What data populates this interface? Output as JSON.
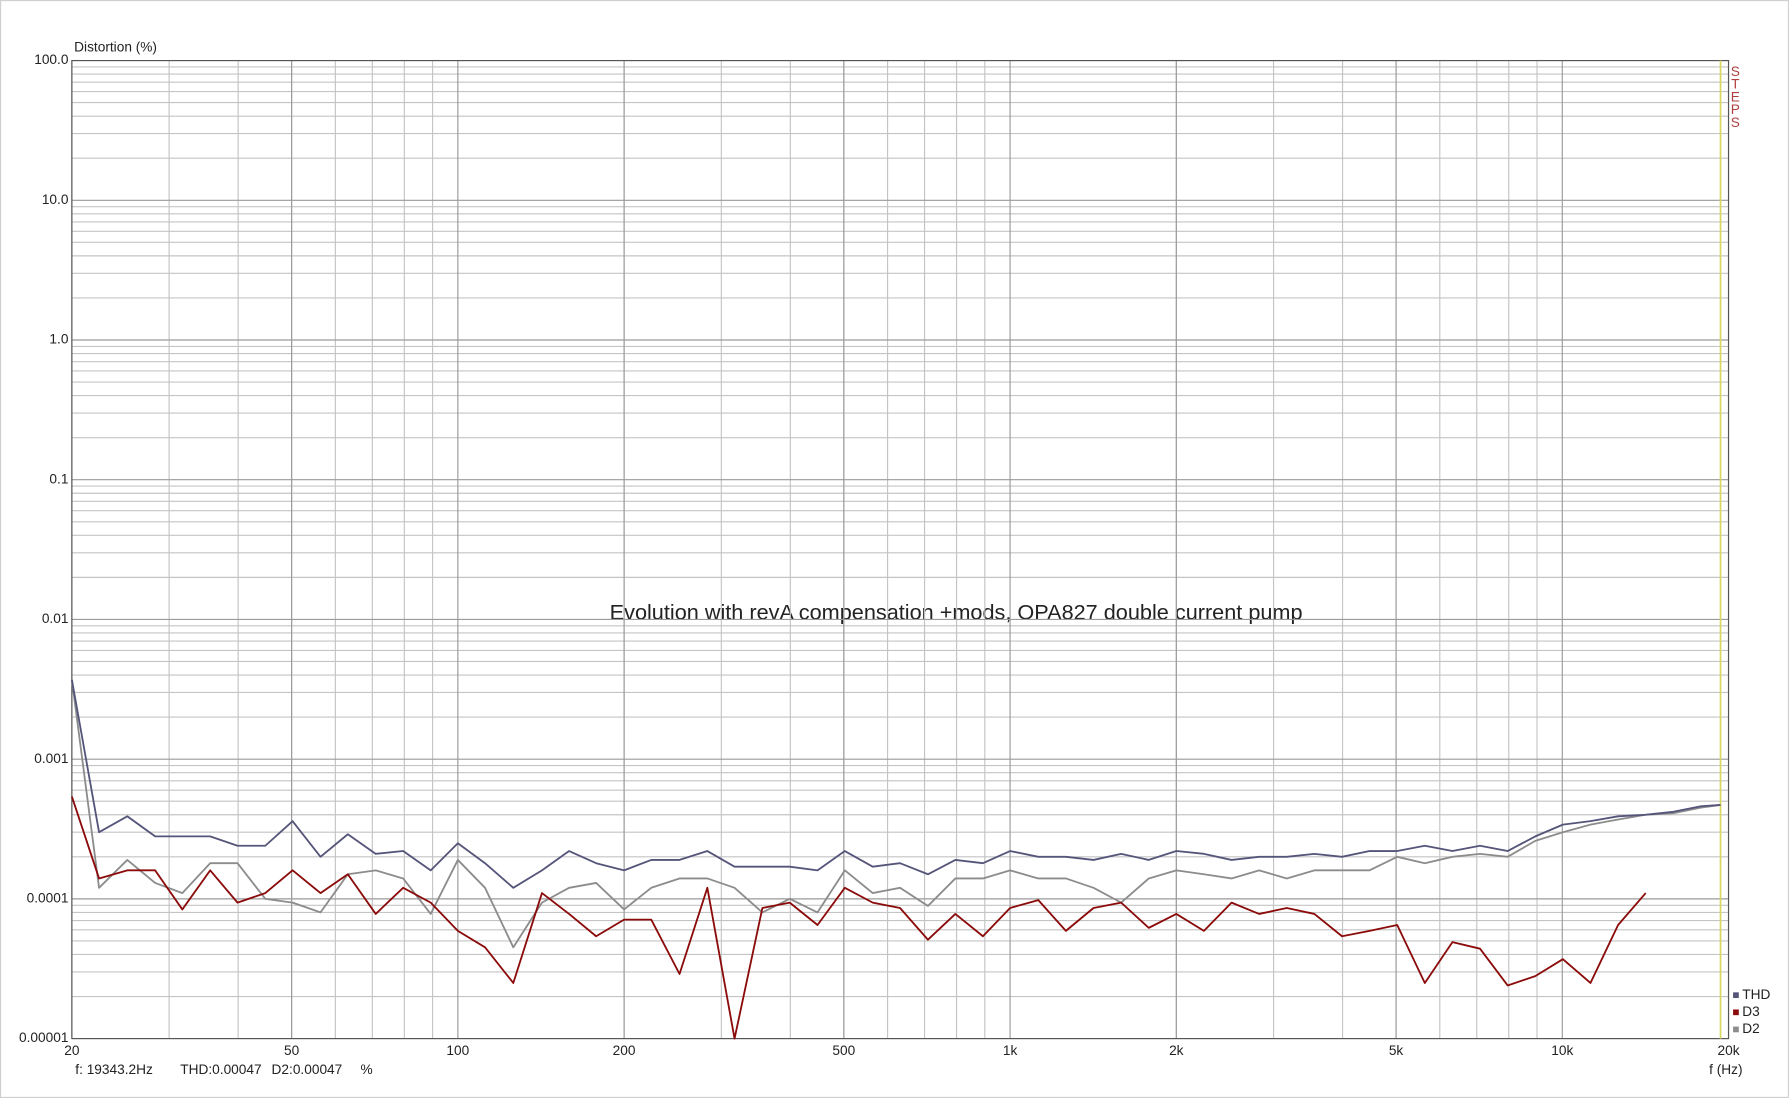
{
  "chart_data": {
    "type": "line",
    "y_label": "Distortion (%)",
    "x_label": "f (Hz)",
    "annotation": "Evolution with revA compensation +mods, OPA827 double current pump",
    "xscale": "log",
    "yscale": "log",
    "grid": true,
    "legend": "bottom-right",
    "xlim": [
      20,
      20000
    ],
    "ylim": [
      1e-05,
      100
    ],
    "xticks": [
      20,
      50,
      100,
      200,
      500,
      {
        "value": 1000,
        "label": "1k"
      },
      {
        "value": 2000,
        "label": "2k"
      },
      {
        "value": 5000,
        "label": "5k"
      },
      {
        "value": 10000,
        "label": "10k"
      },
      {
        "value": 20000,
        "label": "20k"
      }
    ],
    "yticks": [
      {
        "value": 100,
        "label": "100.0"
      },
      {
        "value": 10,
        "label": "10.0"
      },
      {
        "value": 1,
        "label": "1.0"
      },
      0.1,
      0.01,
      0.001,
      0.0001,
      1e-05
    ],
    "x": [
      20,
      22.4,
      25.2,
      28.3,
      31.7,
      35.6,
      39.9,
      44.8,
      50.2,
      56.4,
      63.2,
      71,
      79.6,
      89.3,
      100,
      112,
      126,
      142,
      159,
      178,
      200,
      224,
      252,
      283,
      317,
      356,
      399,
      448,
      502,
      564,
      632,
      710,
      796,
      893,
      1000,
      1125,
      1262,
      1416,
      1589,
      1783,
      2000,
      2244,
      2518,
      2825,
      3170,
      3557,
      3991,
      4477,
      5024,
      5637,
      6325,
      7096,
      7962,
      8934,
      10024,
      11247,
      12619,
      14159,
      15887,
      17825,
      19343.2
    ],
    "series": [
      {
        "name": "THD",
        "color": "#55557a",
        "values": [
          0.0037,
          0.0003,
          0.00039,
          0.00028,
          0.00028,
          0.00028,
          0.00024,
          0.00024,
          0.00036,
          0.0002,
          0.00029,
          0.00021,
          0.00022,
          0.00016,
          0.00025,
          0.00018,
          0.00012,
          0.00016,
          0.00022,
          0.00018,
          0.00016,
          0.00019,
          0.00019,
          0.00022,
          0.00017,
          0.00017,
          0.00017,
          0.00016,
          0.00022,
          0.00017,
          0.00018,
          0.00015,
          0.00019,
          0.00018,
          0.00022,
          0.0002,
          0.0002,
          0.00019,
          0.00021,
          0.00019,
          0.00022,
          0.00021,
          0.00019,
          0.0002,
          0.0002,
          0.00021,
          0.0002,
          0.00022,
          0.00022,
          0.00024,
          0.00022,
          0.00024,
          0.00022,
          0.00028,
          0.00034,
          0.00036,
          0.00039,
          0.0004,
          0.00042,
          0.00046,
          0.00047
        ]
      },
      {
        "name": "D3",
        "color": "#8b0a0a",
        "values": [
          0.00054,
          0.00014,
          0.00016,
          0.00016,
          8.4e-05,
          0.00016,
          9.4e-05,
          0.00011,
          0.00016,
          0.00011,
          0.00015,
          7.8e-05,
          0.00012,
          9.4e-05,
          5.9e-05,
          4.5e-05,
          2.5e-05,
          0.00011,
          7.8e-05,
          5.4e-05,
          7.1e-05,
          7.1e-05,
          2.9e-05,
          0.00012,
          1e-05,
          8.6e-05,
          9.4e-05,
          6.5e-05,
          0.00012,
          9.4e-05,
          8.6e-05,
          5.1e-05,
          7.8e-05,
          5.4e-05,
          8.6e-05,
          9.8e-05,
          5.9e-05,
          8.6e-05,
          9.4e-05,
          6.2e-05,
          7.8e-05,
          5.9e-05,
          9.4e-05,
          7.8e-05,
          8.6e-05,
          7.8e-05,
          5.4e-05,
          5.9e-05,
          6.5e-05,
          2.5e-05,
          4.9e-05,
          4.4e-05,
          2.4e-05,
          2.8e-05,
          3.7e-05,
          2.5e-05,
          6.5e-05,
          0.00011,
          null,
          null,
          null
        ]
      },
      {
        "name": "D2",
        "color": "#8c8c8c",
        "values": [
          0.0037,
          0.00012,
          0.00019,
          0.00013,
          0.00011,
          0.00018,
          0.00018,
          0.0001,
          9.4e-05,
          8e-05,
          0.00015,
          0.00016,
          0.00014,
          7.8e-05,
          0.00019,
          0.00012,
          4.5e-05,
          9.4e-05,
          0.00012,
          0.00013,
          8.4e-05,
          0.00012,
          0.00014,
          0.00014,
          0.00012,
          8e-05,
          0.0001,
          8e-05,
          0.00016,
          0.00011,
          0.00012,
          8.9e-05,
          0.00014,
          0.00014,
          0.00016,
          0.00014,
          0.00014,
          0.00012,
          9.4e-05,
          0.00014,
          0.00016,
          0.00015,
          0.00014,
          0.00016,
          0.00014,
          0.00016,
          0.00016,
          0.00016,
          0.0002,
          0.00018,
          0.0002,
          0.00021,
          0.0002,
          0.00026,
          0.0003,
          0.00034,
          0.00037,
          0.0004,
          0.00041,
          0.00045,
          0.00047
        ]
      }
    ],
    "cursor": {
      "x": 19343.2,
      "label": "f: 19343.2Hz",
      "readouts": [
        "THD:0.00047",
        "D2:0.00047",
        "%"
      ]
    },
    "marker_label": "STEPS"
  }
}
